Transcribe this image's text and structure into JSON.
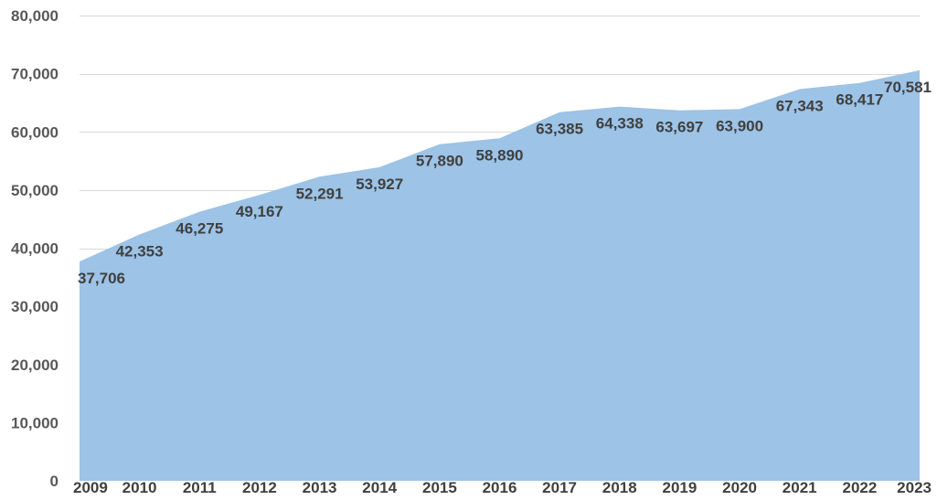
{
  "chart_data": {
    "type": "area",
    "title": "",
    "xlabel": "",
    "ylabel": "",
    "categories": [
      "2009",
      "2010",
      "2011",
      "2012",
      "2013",
      "2014",
      "2015",
      "2016",
      "2017",
      "2018",
      "2019",
      "2020",
      "2021",
      "2022",
      "2023"
    ],
    "values": [
      37706,
      42353,
      46275,
      49167,
      52291,
      53927,
      57890,
      58890,
      63385,
      64338,
      63697,
      63900,
      67343,
      68417,
      70581
    ],
    "value_labels": [
      "37,706",
      "42,353",
      "46,275",
      "49,167",
      "52,291",
      "53,927",
      "57,890",
      "58,890",
      "63,385",
      "64,338",
      "63,697",
      "63,900",
      "67,343",
      "68,417",
      "70,581"
    ],
    "ylim": [
      0,
      80000
    ],
    "yticks": [
      0,
      10000,
      20000,
      30000,
      40000,
      50000,
      60000,
      70000,
      80000
    ],
    "ytick_labels": [
      "0",
      "10,000",
      "20,000",
      "30,000",
      "40,000",
      "50,000",
      "60,000",
      "70,000",
      "80,000"
    ],
    "grid": true,
    "legend": "none",
    "colors": {
      "area": "#9dc3e6",
      "grid": "#d9d9d9",
      "text": "#404040",
      "ytext": "#595959"
    }
  }
}
